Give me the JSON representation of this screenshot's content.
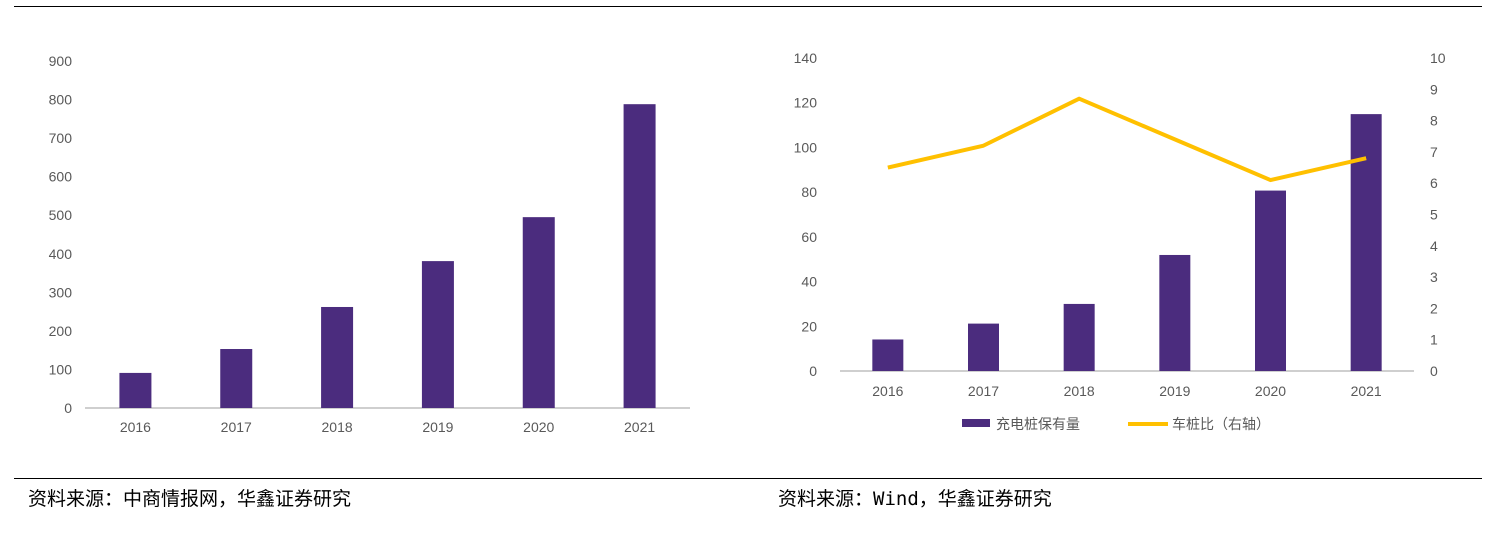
{
  "chart_data": [
    {
      "type": "bar",
      "categories": [
        "2016",
        "2017",
        "2018",
        "2019",
        "2020",
        "2021"
      ],
      "values": [
        91,
        153,
        262,
        381,
        495,
        788
      ],
      "ylim": [
        0,
        900
      ],
      "yticks": [
        0,
        100,
        200,
        300,
        400,
        500,
        600,
        700,
        800,
        900
      ],
      "grid": false,
      "colors": {
        "bar": "#4B2C7E"
      }
    },
    {
      "type": "bar+line",
      "categories": [
        "2016",
        "2017",
        "2018",
        "2019",
        "2020",
        "2021"
      ],
      "series": [
        {
          "name": "充电桩保有量",
          "type": "bar",
          "axis": "left",
          "values": [
            14.1,
            21.2,
            30.0,
            51.9,
            80.7,
            114.9
          ],
          "color": "#4B2C7E"
        },
        {
          "name": "车桩比（右轴）",
          "type": "line",
          "axis": "right",
          "values": [
            6.5,
            7.2,
            8.7,
            7.4,
            6.1,
            6.8
          ],
          "color": "#FFC000"
        }
      ],
      "ylim": [
        0,
        140
      ],
      "yticks": [
        0,
        20,
        40,
        60,
        80,
        100,
        120,
        140
      ],
      "y2lim": [
        0,
        10
      ],
      "y2ticks": [
        0,
        1,
        2,
        3,
        4,
        5,
        6,
        7,
        8,
        9,
        10
      ],
      "grid": false,
      "legend": "bottom"
    }
  ],
  "sources": {
    "left": "资料来源：中商情报网，华鑫证券研究",
    "right": "资料来源：Wind，华鑫证券研究"
  }
}
